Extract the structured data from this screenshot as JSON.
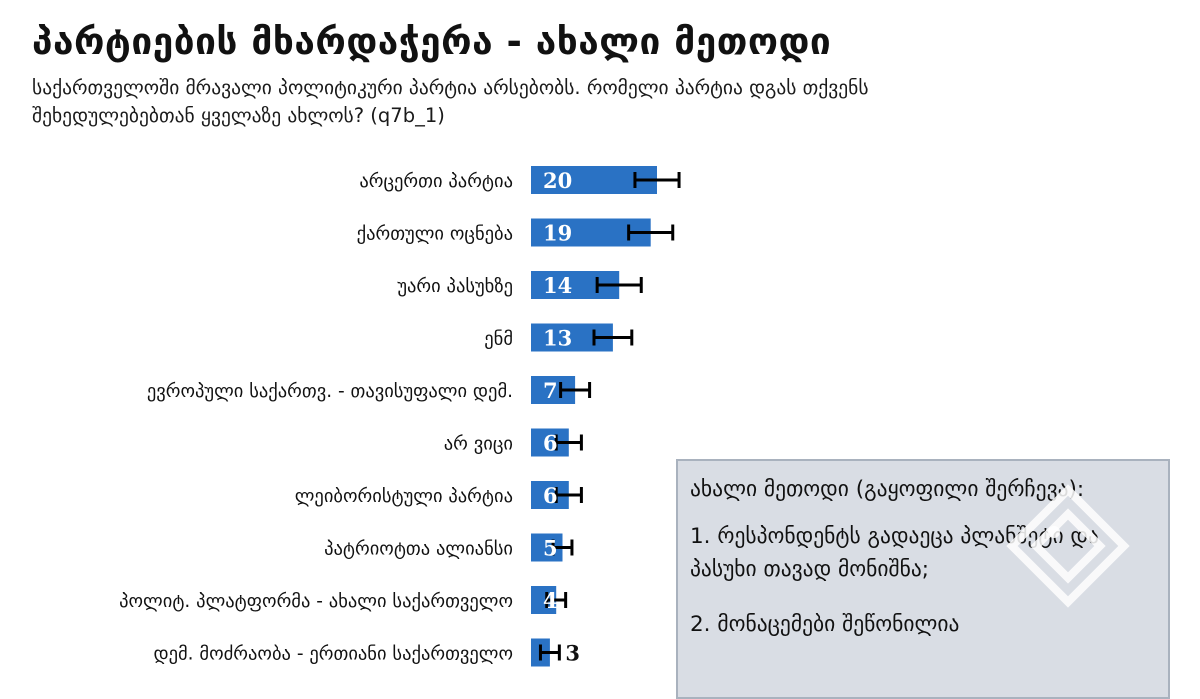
{
  "title": "პარტიების მხარდაჭერა - ახალი მეთოდი",
  "subtitle": "საქართველოში მრავალი პოლიტიკური პარტია არსებობს. რომელი პარტია დგას თქვენს შეხედულებებთან ყველაზე ახლოს? (q7b_1)",
  "info_box": {
    "heading": "ახალი მეთოდი (გაყოფილი შერჩევა):",
    "items": [
      "1. რესპონდენტს გადაეცა პლანშეტი და პასუხი თავად მონიშნა;",
      "2. მონაცემები შეწონილია"
    ]
  },
  "colors": {
    "bar": "#2a72c4",
    "bar_label": "#ffffff",
    "error_bar": "#000000",
    "info_box_bg": "#d9dde4",
    "watermark": "#ffffff"
  },
  "watermark_icon": "logo-diamond-icon",
  "chart_data": {
    "type": "bar",
    "orientation": "horizontal",
    "categories": [
      "არცერთი პარტია",
      "ქართული ოცნება",
      "უარი პასუხზე",
      "ენმ",
      "ევროპული საქართვ. - თავისუფალი დემ.",
      "არ ვიცი",
      "ლეიბორისტული პარტია",
      "პატრიოტთა ალიანსი",
      "პოლიტ. პლატფორმა - ახალი საქართველო",
      "დემ. მოძრაობა - ერთიანი საქართველო"
    ],
    "values": [
      20,
      19,
      14,
      13,
      7,
      6,
      6,
      5,
      4,
      3
    ],
    "error": [
      3.5,
      3.5,
      3.5,
      3,
      2.3,
      2,
      2,
      1.5,
      1.5,
      1.5
    ],
    "value_labels": [
      "20",
      "19",
      "14",
      "13",
      "7",
      "6",
      "6",
      "5",
      "4",
      "3"
    ],
    "xlim": [
      0,
      100
    ],
    "grid": false,
    "legend": "none"
  }
}
